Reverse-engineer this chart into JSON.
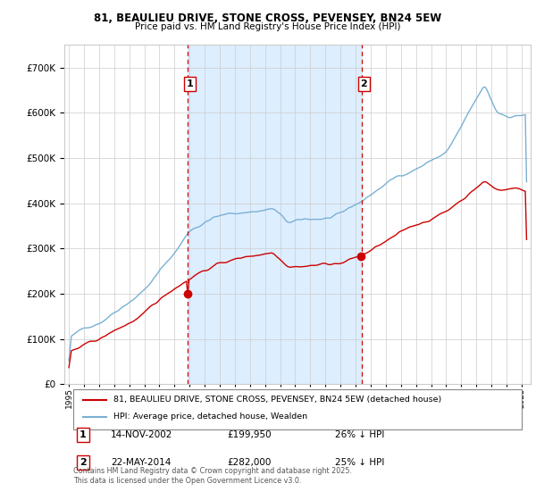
{
  "title": "81, BEAULIEU DRIVE, STONE CROSS, PEVENSEY, BN24 5EW",
  "subtitle": "Price paid vs. HM Land Registry's House Price Index (HPI)",
  "legend_red": "81, BEAULIEU DRIVE, STONE CROSS, PEVENSEY, BN24 5EW (detached house)",
  "legend_blue": "HPI: Average price, detached house, Wealden",
  "transaction1_date": "14-NOV-2002",
  "transaction1_price": "£199,950",
  "transaction1_hpi": "26% ↓ HPI",
  "transaction2_date": "22-MAY-2014",
  "transaction2_price": "£282,000",
  "transaction2_hpi": "25% ↓ HPI",
  "footnote1": "Contains HM Land Registry data © Crown copyright and database right 2025.",
  "footnote2": "This data is licensed under the Open Government Licence v3.0.",
  "red_color": "#cc0000",
  "blue_color": "#7ab0d4",
  "shade_color": "#ddeeff",
  "grid_color": "#cccccc",
  "background_color": "#ffffff",
  "marker1_year": 2002.87,
  "marker2_year": 2014.39,
  "ylim_max": 750000,
  "ylim_min": 0
}
